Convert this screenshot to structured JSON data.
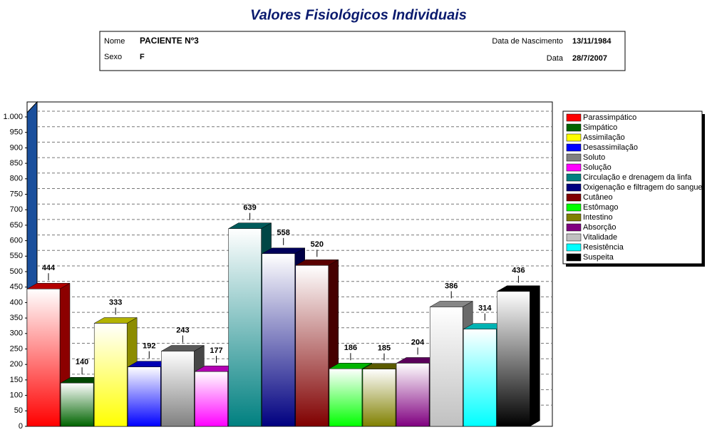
{
  "header": {
    "title": "Valores Fisiológicos Individuais",
    "name_label": "Nome",
    "name": "PACIENTE Nº3",
    "sex_label": "Sexo",
    "sex": "F",
    "birth_label": "Data de Nascimento",
    "birth": "13/11/1984",
    "date_label": "Data",
    "date": "28/7/2007"
  },
  "chart_data": {
    "type": "bar3d",
    "categories": [
      "Parassimpático",
      "Simpático",
      "Assimilação",
      "Desassimilação",
      "Soluto",
      "Solução",
      "Circulação e drenagem da linfa",
      "Oxigenação e filtragem do sangue",
      "Cutâneo",
      "Estômago",
      "Intestino",
      "Absorção",
      "Vitalidade",
      "Resistência",
      "Suspeita"
    ],
    "values": [
      444,
      140,
      333,
      192,
      243,
      177,
      639,
      558,
      520,
      186,
      185,
      204,
      386,
      314,
      436
    ],
    "colors": [
      "#ff0000",
      "#006400",
      "#ffff00",
      "#0000ff",
      "#808080",
      "#ff00ff",
      "#008080",
      "#000080",
      "#800000",
      "#00ff00",
      "#808000",
      "#800080",
      "#c0c0c0",
      "#00ffff",
      "#000000"
    ],
    "ylim": [
      0,
      1030
    ],
    "yticks": [
      0,
      50,
      100,
      150,
      200,
      250,
      300,
      350,
      400,
      450,
      500,
      550,
      600,
      650,
      700,
      750,
      800,
      850,
      900,
      950,
      {
        "value": 1000,
        "label": "1.000"
      }
    ],
    "grid": true,
    "legend": "right"
  }
}
